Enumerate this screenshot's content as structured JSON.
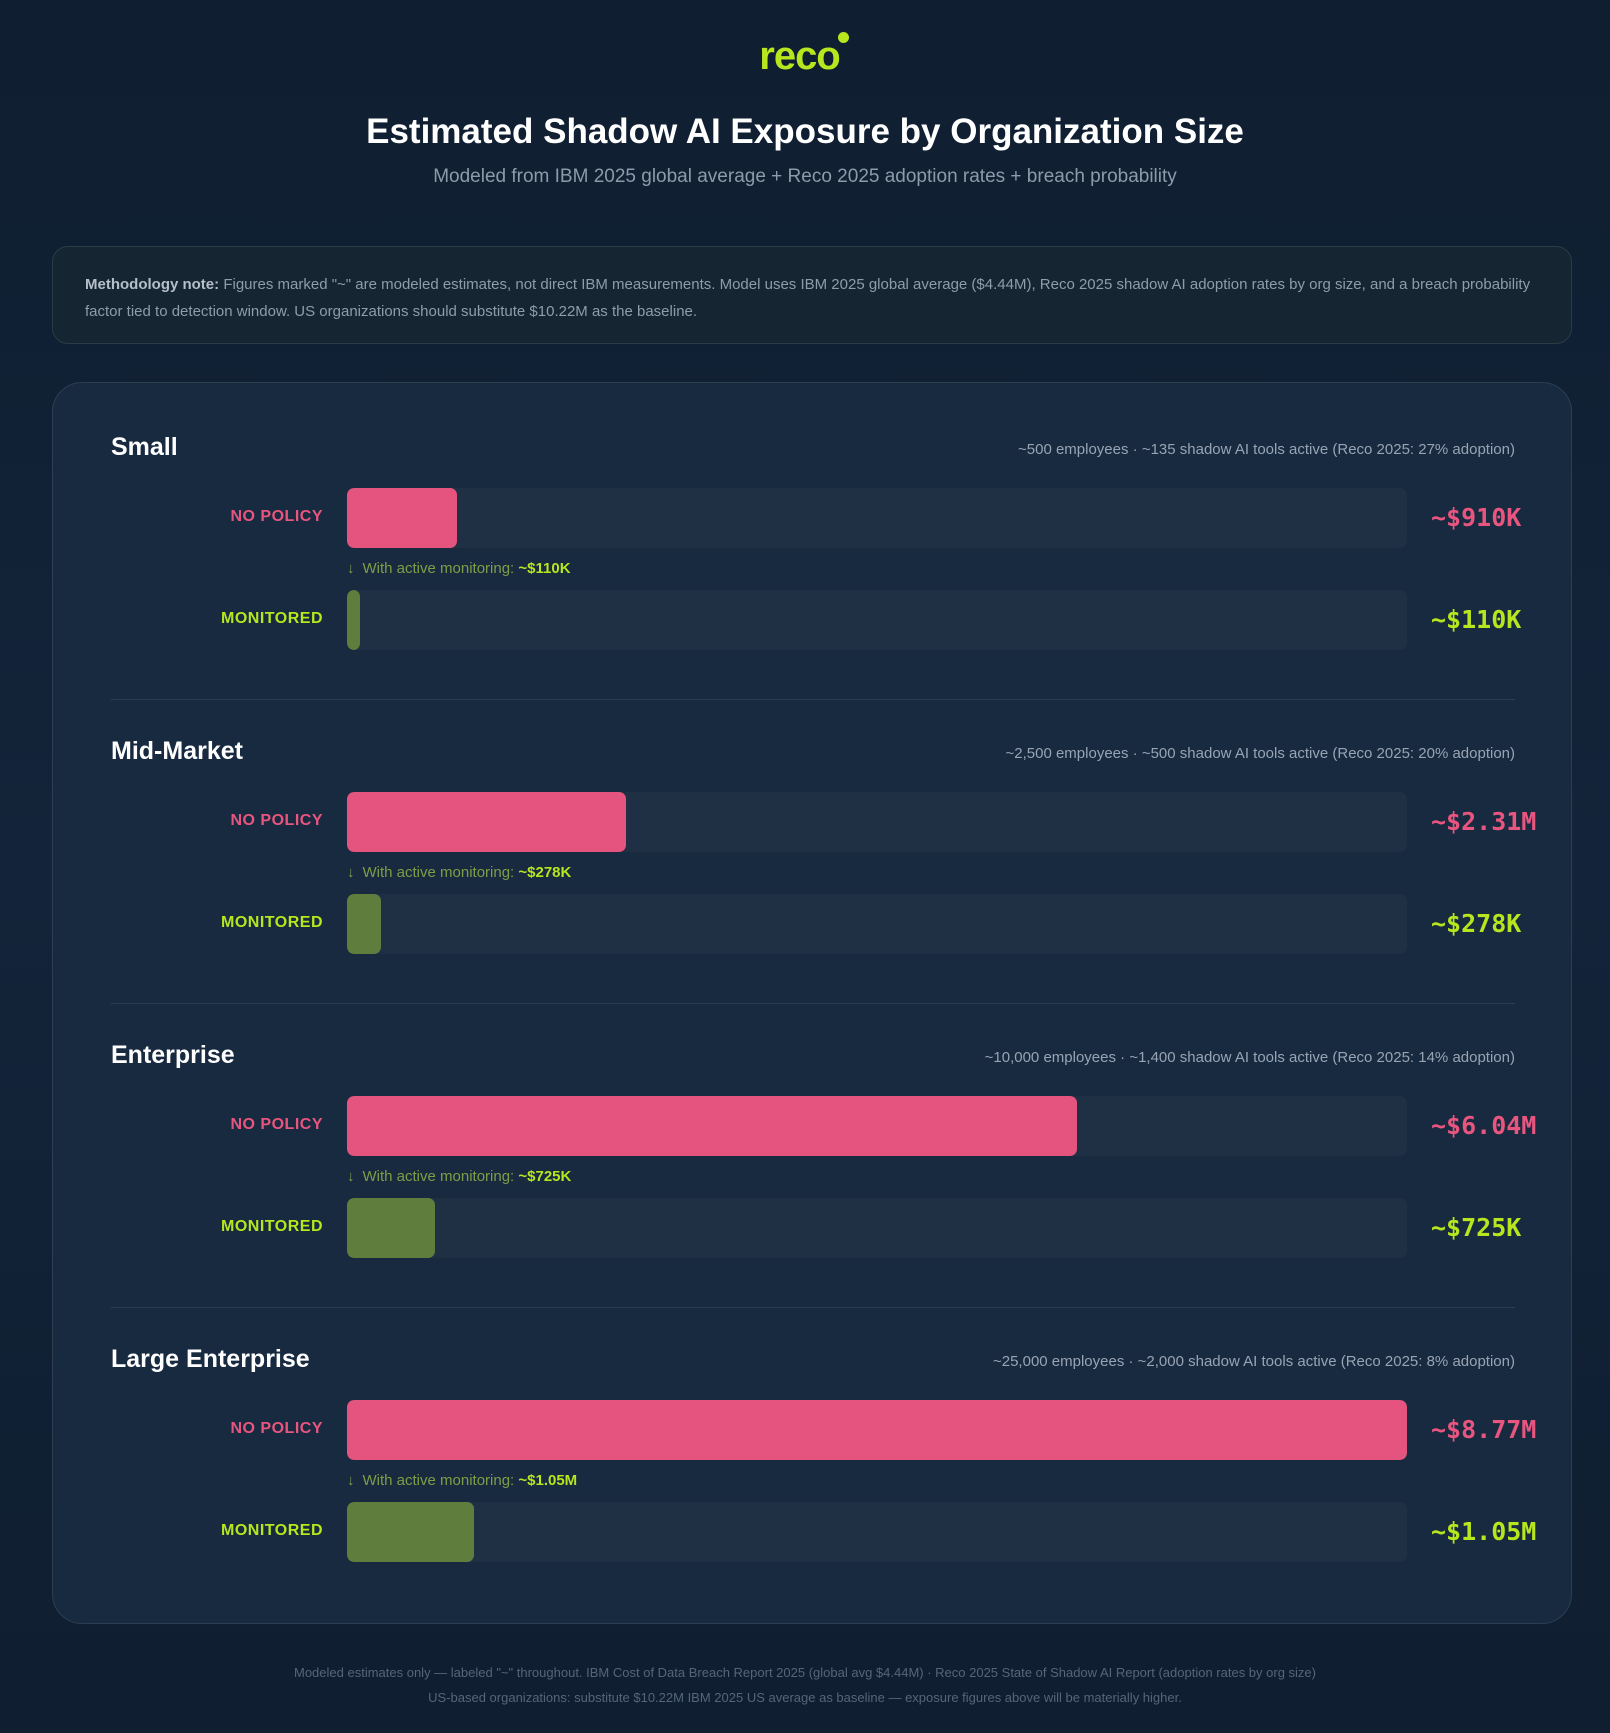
{
  "header": {
    "logo": "reco",
    "title": "Estimated Shadow AI Exposure by Organization Size",
    "subtitle": "Modeled from IBM 2025 global average + Reco 2025 adoption rates + breach probability"
  },
  "methodology": {
    "label": "Methodology note:",
    "text": "Figures marked \"~\" are modeled estimates, not direct IBM measurements. Model uses IBM 2025 global average ($4.44M), Reco 2025 shadow AI adoption rates by org size, and a breach probability factor tied to detection window. US organizations should substitute $10.22M as the baseline."
  },
  "labels": {
    "no_policy": "NO POLICY",
    "monitored": "MONITORED",
    "monitoring_prefix": "With active monitoring:",
    "arrow": "↓"
  },
  "colors": {
    "no_policy": "#e4547f",
    "monitored": "#5f7e3d",
    "accent": "#b7e61e"
  },
  "chart_data": {
    "type": "bar",
    "orientation": "horizontal",
    "xlim": [
      0,
      8.77
    ],
    "unit": "$M",
    "groups": [
      {
        "name": "Small",
        "meta": "~500 employees · ~135 shadow AI tools active (Reco 2025: 27% adoption)",
        "no_policy": {
          "value": 0.91,
          "label": "~$910K"
        },
        "monitored": {
          "value": 0.11,
          "label": "~$110K"
        }
      },
      {
        "name": "Mid-Market",
        "meta": "~2,500 employees · ~500 shadow AI tools active (Reco 2025: 20% adoption)",
        "no_policy": {
          "value": 2.31,
          "label": "~$2.31M"
        },
        "monitored": {
          "value": 0.278,
          "label": "~$278K"
        }
      },
      {
        "name": "Enterprise",
        "meta": "~10,000 employees · ~1,400 shadow AI tools active (Reco 2025: 14% adoption)",
        "no_policy": {
          "value": 6.04,
          "label": "~$6.04M"
        },
        "monitored": {
          "value": 0.725,
          "label": "~$725K"
        }
      },
      {
        "name": "Large Enterprise",
        "meta": "~25,000 employees · ~2,000 shadow AI tools active (Reco 2025: 8% adoption)",
        "no_policy": {
          "value": 8.77,
          "label": "~$8.77M"
        },
        "monitored": {
          "value": 1.05,
          "label": "~$1.05M"
        }
      }
    ]
  },
  "footer": {
    "line1": "Modeled estimates only — labeled \"~\" throughout. IBM Cost of Data Breach Report 2025 (global avg $4.44M) · Reco 2025 State of Shadow AI Report (adoption rates by org size)",
    "line2": "US-based organizations: substitute $10.22M IBM 2025 US average as baseline — exposure figures above will be materially higher."
  }
}
